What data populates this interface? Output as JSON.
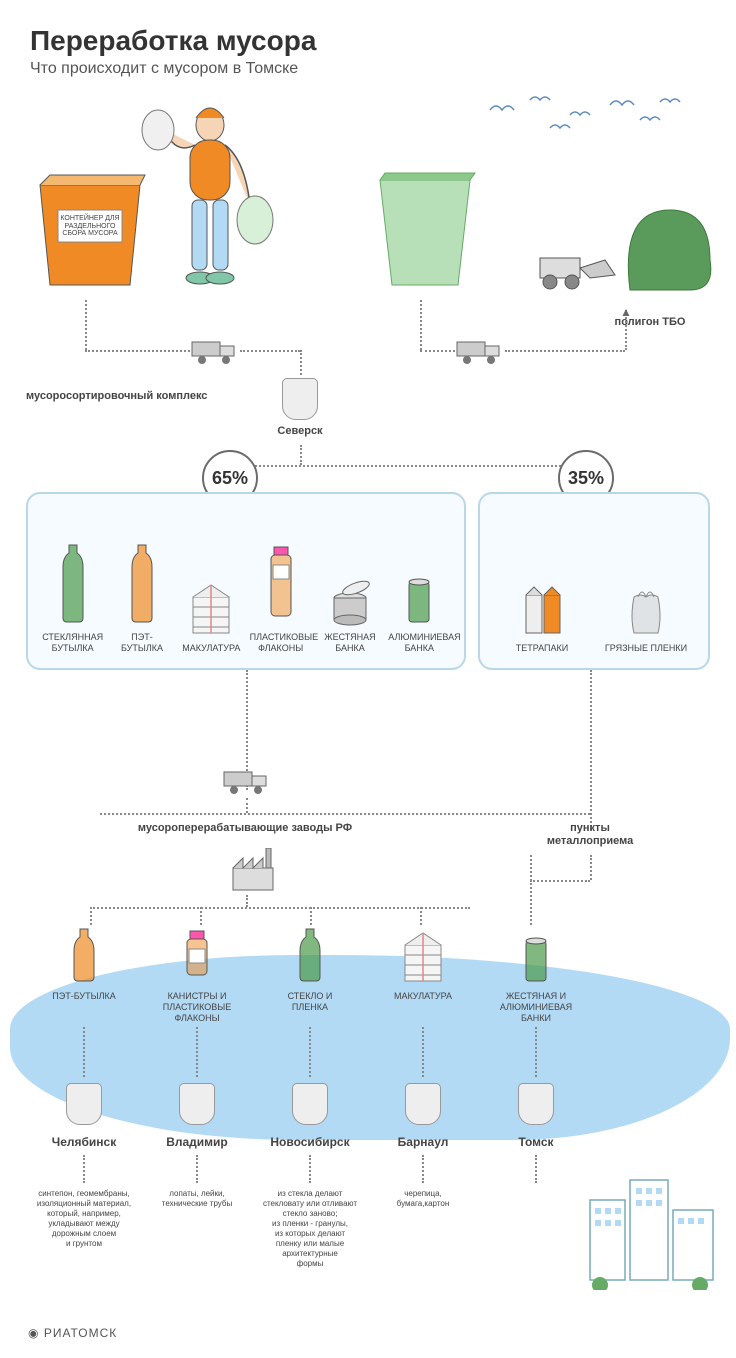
{
  "title": "Переработка мусора",
  "subtitle": "Что происходит с мусором в Томске",
  "top": {
    "container_label": "КОНТЕЙНЕР\nДЛЯ РАЗДЕЛЬНОГО\nСБОРА МУСОРА",
    "container_color": "#f08a24",
    "bin2_color": "#8bc98b",
    "landfill_label": "полигон ТБО",
    "landfill_color": "#5a9a5a",
    "sorting_label": "мусоросортировочный комплекс",
    "seversk_label": "Северск",
    "sky_bird_color": "#5a8abf"
  },
  "split": {
    "left_pct": "65%",
    "right_pct": "35%",
    "panel_border": "#b8d8e8",
    "panel_bg": "#f5fbfe",
    "left_items": [
      {
        "label": "СТЕКЛЯННАЯ\nБУТЫЛКА",
        "color": "#4a9a4a",
        "shape": "bottle"
      },
      {
        "label": "ПЭТ-БУТЫЛКА",
        "color": "#f08a24",
        "shape": "bottle"
      },
      {
        "label": "МАКУЛАТУРА",
        "color": "#888888",
        "shape": "stack"
      },
      {
        "label": "ПЛАСТИКОВЫЕ\nФЛАКОНЫ",
        "color": "#f08a24",
        "shape": "small-bottle"
      },
      {
        "label": "ЖЕСТЯНАЯ\nБАНКА",
        "color": "#888888",
        "shape": "can-open"
      },
      {
        "label": "АЛЮМИНИЕВАЯ\nБАНКА",
        "color": "#4a9a4a",
        "shape": "can"
      }
    ],
    "right_items": [
      {
        "label": "ТЕТРАПАКИ",
        "color": "#f08a24",
        "shape": "carton"
      },
      {
        "label": "ГРЯЗНЫЕ ПЛЕНКИ",
        "color": "#cccccc",
        "shape": "bag"
      }
    ]
  },
  "bottom": {
    "factories_label": "мусороперерабатывающие заводы РФ",
    "metal_label": "пункты\nметаллоприема",
    "blue_bg": "#b3daf5",
    "cities": [
      {
        "product": "ПЭТ-БУТЫЛКА",
        "color": "#f08a24",
        "shape": "bottle",
        "city": "Челябинск",
        "desc": "синтепон, геомембраны,\nизоляционный материал,\nкоторый, например,\nукладывают между\nдорожным слоем\nи грунтом"
      },
      {
        "product": "КАНИСТРЫ И\nПЛАСТИКОВЫЕ\nФЛАКОНЫ",
        "color": "#f08a24",
        "shape": "small-bottle",
        "city": "Владимир",
        "desc": "лопаты, лейки,\nтехнические трубы"
      },
      {
        "product": "СТЕКЛО И\nПЛЕНКА",
        "color": "#4a9a4a",
        "shape": "bottle",
        "city": "Новосибирск",
        "desc": "из стекла делают\nстекловату или отливают\nстекло заново;\nиз пленки - гранулы,\nиз которых делают\nпленку или малые\nархитектурные\nформы"
      },
      {
        "product": "МАКУЛАТУРА",
        "color": "#888888",
        "shape": "stack",
        "city": "Барнаул",
        "desc": "черепица,\nбумага,картон"
      },
      {
        "product": "ЖЕСТЯНАЯ И\nАЛЮМИНИЕВАЯ\nБАНКИ",
        "color": "#4a9a4a",
        "shape": "can",
        "city": "Томск",
        "desc": ""
      }
    ]
  },
  "footer": "РИАТОМСК"
}
